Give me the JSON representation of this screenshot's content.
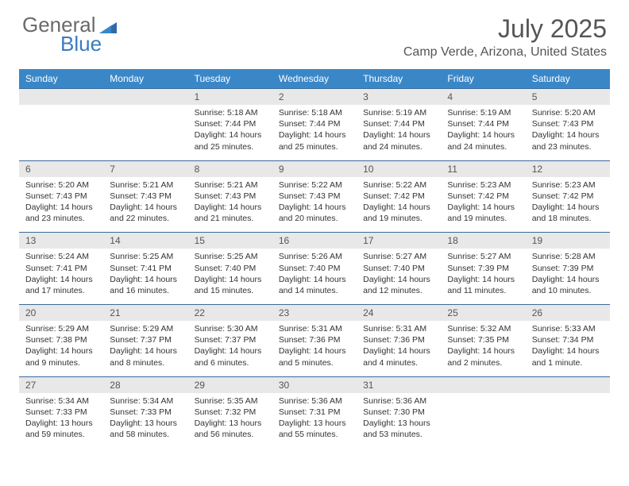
{
  "brand": {
    "name_top": "General",
    "name_bottom": "Blue",
    "color_top": "#6a6a6a",
    "color_bottom": "#3a7cbf"
  },
  "title": "July 2025",
  "location": "Camp Verde, Arizona, United States",
  "header_bg": "#3a87c8",
  "header_text_color": "#ffffff",
  "daynum_bg": "#e8e8e8",
  "divider_color": "#3a6a9a",
  "body_text_color": "#333333",
  "days_of_week": [
    "Sunday",
    "Monday",
    "Tuesday",
    "Wednesday",
    "Thursday",
    "Friday",
    "Saturday"
  ],
  "weeks": [
    [
      null,
      null,
      {
        "n": "1",
        "sunrise": "5:18 AM",
        "sunset": "7:44 PM",
        "daylight": "14 hours and 25 minutes."
      },
      {
        "n": "2",
        "sunrise": "5:18 AM",
        "sunset": "7:44 PM",
        "daylight": "14 hours and 25 minutes."
      },
      {
        "n": "3",
        "sunrise": "5:19 AM",
        "sunset": "7:44 PM",
        "daylight": "14 hours and 24 minutes."
      },
      {
        "n": "4",
        "sunrise": "5:19 AM",
        "sunset": "7:44 PM",
        "daylight": "14 hours and 24 minutes."
      },
      {
        "n": "5",
        "sunrise": "5:20 AM",
        "sunset": "7:43 PM",
        "daylight": "14 hours and 23 minutes."
      }
    ],
    [
      {
        "n": "6",
        "sunrise": "5:20 AM",
        "sunset": "7:43 PM",
        "daylight": "14 hours and 23 minutes."
      },
      {
        "n": "7",
        "sunrise": "5:21 AM",
        "sunset": "7:43 PM",
        "daylight": "14 hours and 22 minutes."
      },
      {
        "n": "8",
        "sunrise": "5:21 AM",
        "sunset": "7:43 PM",
        "daylight": "14 hours and 21 minutes."
      },
      {
        "n": "9",
        "sunrise": "5:22 AM",
        "sunset": "7:43 PM",
        "daylight": "14 hours and 20 minutes."
      },
      {
        "n": "10",
        "sunrise": "5:22 AM",
        "sunset": "7:42 PM",
        "daylight": "14 hours and 19 minutes."
      },
      {
        "n": "11",
        "sunrise": "5:23 AM",
        "sunset": "7:42 PM",
        "daylight": "14 hours and 19 minutes."
      },
      {
        "n": "12",
        "sunrise": "5:23 AM",
        "sunset": "7:42 PM",
        "daylight": "14 hours and 18 minutes."
      }
    ],
    [
      {
        "n": "13",
        "sunrise": "5:24 AM",
        "sunset": "7:41 PM",
        "daylight": "14 hours and 17 minutes."
      },
      {
        "n": "14",
        "sunrise": "5:25 AM",
        "sunset": "7:41 PM",
        "daylight": "14 hours and 16 minutes."
      },
      {
        "n": "15",
        "sunrise": "5:25 AM",
        "sunset": "7:40 PM",
        "daylight": "14 hours and 15 minutes."
      },
      {
        "n": "16",
        "sunrise": "5:26 AM",
        "sunset": "7:40 PM",
        "daylight": "14 hours and 14 minutes."
      },
      {
        "n": "17",
        "sunrise": "5:27 AM",
        "sunset": "7:40 PM",
        "daylight": "14 hours and 12 minutes."
      },
      {
        "n": "18",
        "sunrise": "5:27 AM",
        "sunset": "7:39 PM",
        "daylight": "14 hours and 11 minutes."
      },
      {
        "n": "19",
        "sunrise": "5:28 AM",
        "sunset": "7:39 PM",
        "daylight": "14 hours and 10 minutes."
      }
    ],
    [
      {
        "n": "20",
        "sunrise": "5:29 AM",
        "sunset": "7:38 PM",
        "daylight": "14 hours and 9 minutes."
      },
      {
        "n": "21",
        "sunrise": "5:29 AM",
        "sunset": "7:37 PM",
        "daylight": "14 hours and 8 minutes."
      },
      {
        "n": "22",
        "sunrise": "5:30 AM",
        "sunset": "7:37 PM",
        "daylight": "14 hours and 6 minutes."
      },
      {
        "n": "23",
        "sunrise": "5:31 AM",
        "sunset": "7:36 PM",
        "daylight": "14 hours and 5 minutes."
      },
      {
        "n": "24",
        "sunrise": "5:31 AM",
        "sunset": "7:36 PM",
        "daylight": "14 hours and 4 minutes."
      },
      {
        "n": "25",
        "sunrise": "5:32 AM",
        "sunset": "7:35 PM",
        "daylight": "14 hours and 2 minutes."
      },
      {
        "n": "26",
        "sunrise": "5:33 AM",
        "sunset": "7:34 PM",
        "daylight": "14 hours and 1 minute."
      }
    ],
    [
      {
        "n": "27",
        "sunrise": "5:34 AM",
        "sunset": "7:33 PM",
        "daylight": "13 hours and 59 minutes."
      },
      {
        "n": "28",
        "sunrise": "5:34 AM",
        "sunset": "7:33 PM",
        "daylight": "13 hours and 58 minutes."
      },
      {
        "n": "29",
        "sunrise": "5:35 AM",
        "sunset": "7:32 PM",
        "daylight": "13 hours and 56 minutes."
      },
      {
        "n": "30",
        "sunrise": "5:36 AM",
        "sunset": "7:31 PM",
        "daylight": "13 hours and 55 minutes."
      },
      {
        "n": "31",
        "sunrise": "5:36 AM",
        "sunset": "7:30 PM",
        "daylight": "13 hours and 53 minutes."
      },
      null,
      null
    ]
  ],
  "labels": {
    "sunrise": "Sunrise: ",
    "sunset": "Sunset: ",
    "daylight": "Daylight: "
  }
}
